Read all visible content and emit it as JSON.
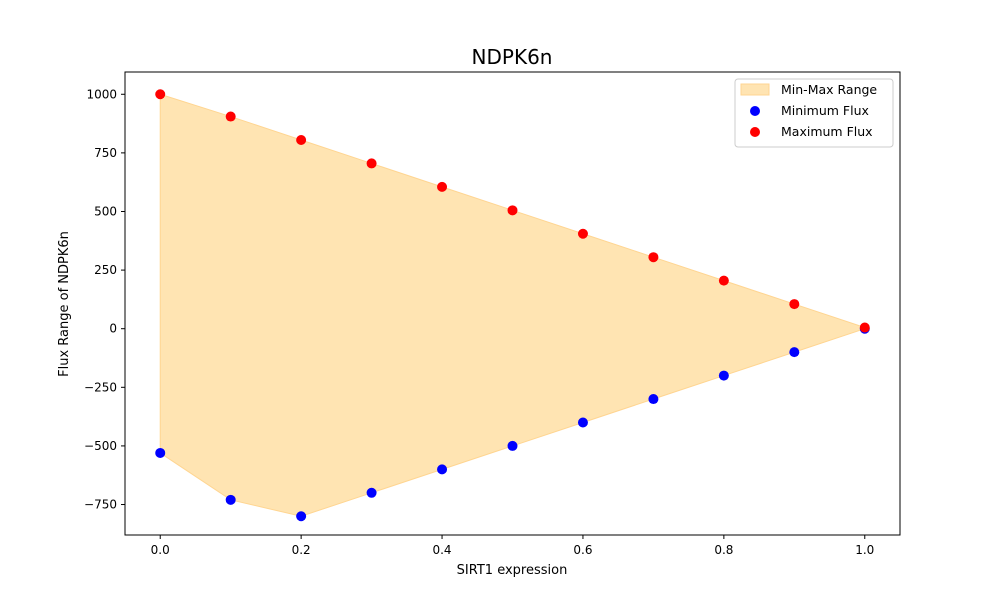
{
  "chart_data": {
    "type": "scatter",
    "title": "NDPK6n",
    "xlabel": "SIRT1 expression",
    "ylabel": "Flux Range of NDPK6n",
    "xlim": [
      -0.05,
      1.05
    ],
    "ylim": [
      -880,
      1095
    ],
    "xticks": [
      0.0,
      0.2,
      0.4,
      0.6,
      0.8,
      1.0
    ],
    "xtick_labels": [
      "0.0",
      "0.2",
      "0.4",
      "0.6",
      "0.8",
      "1.0"
    ],
    "yticks": [
      -750,
      -500,
      -250,
      0,
      250,
      500,
      750,
      1000
    ],
    "ytick_labels": [
      "−750",
      "−500",
      "−250",
      "0",
      "250",
      "500",
      "750",
      "1000"
    ],
    "grid": false,
    "legend_position": "top-right",
    "x": [
      0.0,
      0.1,
      0.2,
      0.3,
      0.4,
      0.5,
      0.6,
      0.7,
      0.8,
      0.9,
      1.0
    ],
    "fill": {
      "name": "Min-Max Range",
      "color": "#FFE4B2",
      "edge_color": "#FFD591"
    },
    "series": [
      {
        "name": "Minimum Flux",
        "color": "#0000FF",
        "values": [
          -530,
          -730,
          -800,
          -700,
          -600,
          -500,
          -400,
          -300,
          -200,
          -100,
          0
        ]
      },
      {
        "name": "Maximum Flux",
        "color": "#FF0000",
        "values": [
          1000,
          905,
          805,
          705,
          605,
          505,
          405,
          305,
          205,
          105,
          5
        ]
      }
    ]
  }
}
